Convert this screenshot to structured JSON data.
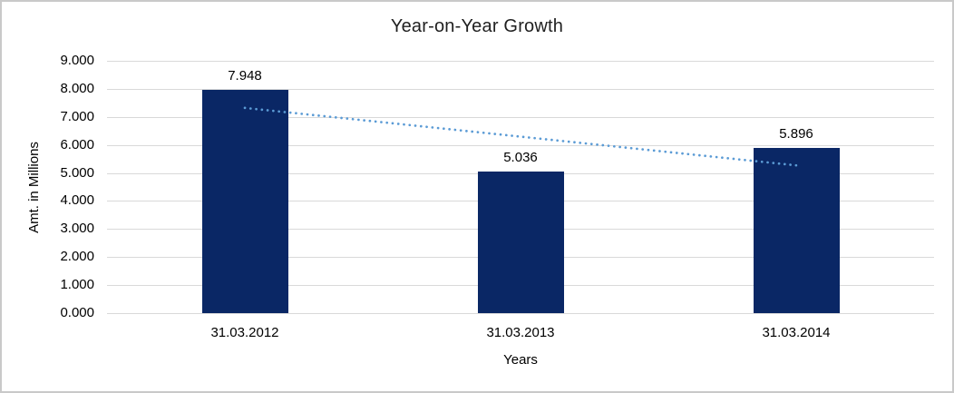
{
  "chart_data": {
    "type": "bar",
    "title": "Year-on-Year Growth",
    "xlabel": "Years",
    "ylabel": "Amt. in Millions",
    "categories": [
      "31.03.2012",
      "31.03.2013",
      "31.03.2014"
    ],
    "values": [
      7948,
      5036,
      5896
    ],
    "value_labels": [
      "7.948",
      "5.036",
      "5.896"
    ],
    "ylim": [
      0,
      9000
    ],
    "yticks": [
      {
        "value": 0,
        "label": "0.000"
      },
      {
        "value": 1000,
        "label": "1.000"
      },
      {
        "value": 2000,
        "label": "2.000"
      },
      {
        "value": 3000,
        "label": "3.000"
      },
      {
        "value": 4000,
        "label": "4.000"
      },
      {
        "value": 5000,
        "label": "5.000"
      },
      {
        "value": 6000,
        "label": "6.000"
      },
      {
        "value": 7000,
        "label": "7.000"
      },
      {
        "value": 8000,
        "label": "8.000"
      },
      {
        "value": 9000,
        "label": "9.000"
      }
    ],
    "grid": "horizontal",
    "legend": "none",
    "trendline": {
      "style": "dotted",
      "from": {
        "category_index": 0,
        "value": 7320
      },
      "to": {
        "category_index": 2,
        "value": 5270
      }
    },
    "colors": {
      "bar": "#0a2765",
      "trendline": "#5b9bd5",
      "gridline": "#d9d9d9",
      "axis_text": "#000000",
      "title_text": "#1f1f1f",
      "border": "#c9c9c9",
      "background": "#ffffff"
    }
  }
}
